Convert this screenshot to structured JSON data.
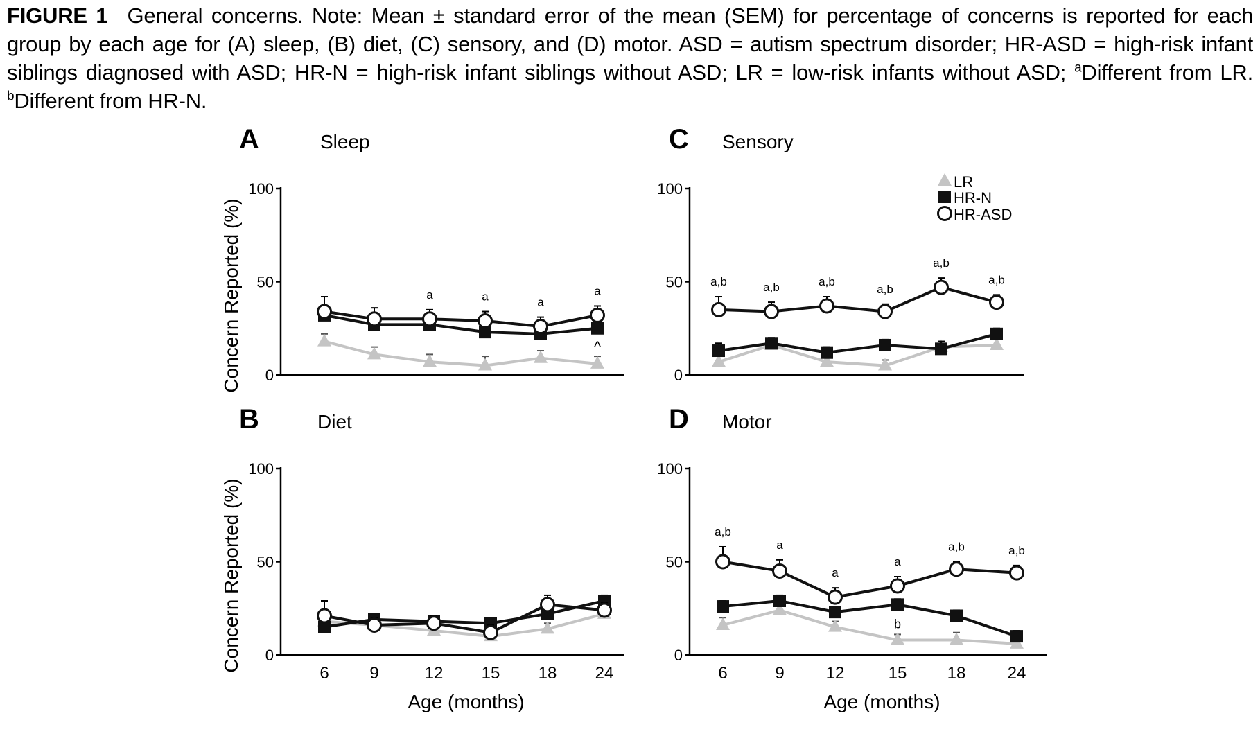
{
  "caption": {
    "label": "FIGURE 1",
    "part1": "General concerns. Note: Mean ± standard error of the mean (SEM) for percentage of concerns is reported for each group by each age for (A) sleep, (B) diet, (C) sensory, and (D) motor. ASD = autism spectrum disorder; HR-ASD = high-risk infant siblings diagnosed with ASD; HR-N = high-risk infant siblings without ASD; LR = low-risk infants without ASD; ",
    "sup_a": "a",
    "part2": "Different from LR. ",
    "sup_b": "b",
    "part3": "Different from HR-N."
  },
  "legend": [
    "LR",
    "HR-N",
    "HR-ASD"
  ],
  "colors": {
    "LR": "#c4c4c4",
    "HR-N": "#111111",
    "HR-ASD": "#111111"
  },
  "chart_data": [
    {
      "type": "line",
      "panel": "A",
      "title": "Sleep",
      "ylabel": "Concern Reported (%)",
      "xlabel": "",
      "categories": [
        "6",
        "9",
        "12",
        "15",
        "18",
        "24"
      ],
      "ylim": [
        0,
        100
      ],
      "yticks": [
        0,
        50,
        100
      ],
      "series": [
        {
          "name": "LR",
          "values": [
            18,
            11,
            7,
            5,
            9,
            6
          ],
          "err": [
            4,
            4,
            4,
            5,
            4,
            4
          ]
        },
        {
          "name": "HR-N",
          "values": [
            32,
            27,
            27,
            23,
            22,
            25
          ],
          "err": [
            4,
            3,
            3,
            3,
            3,
            3
          ]
        },
        {
          "name": "HR-ASD",
          "values": [
            34,
            30,
            30,
            29,
            26,
            32
          ],
          "err": [
            8,
            6,
            5,
            5,
            5,
            5
          ]
        }
      ],
      "annotations": [
        "",
        "",
        "a",
        "a",
        "a",
        "a"
      ],
      "marks": [
        "",
        "",
        "",
        "",
        "",
        "^"
      ]
    },
    {
      "type": "line",
      "panel": "B",
      "title": "Diet",
      "ylabel": "Concern Reported (%)",
      "xlabel": "Age (months)",
      "categories": [
        "6",
        "9",
        "12",
        "15",
        "18",
        "24"
      ],
      "ylim": [
        0,
        100
      ],
      "yticks": [
        0,
        50,
        100
      ],
      "series": [
        {
          "name": "LR",
          "values": [
            18,
            16,
            13,
            10,
            14,
            22
          ],
          "err": [
            4,
            4,
            4,
            4,
            3,
            3
          ]
        },
        {
          "name": "HR-N",
          "values": [
            15,
            19,
            18,
            17,
            22,
            29
          ],
          "err": [
            3,
            3,
            3,
            3,
            3,
            3
          ]
        },
        {
          "name": "HR-ASD",
          "values": [
            21,
            16,
            17,
            12,
            27,
            24
          ],
          "err": [
            8,
            4,
            4,
            4,
            5,
            4
          ]
        }
      ],
      "annotations": [
        "",
        "",
        "",
        "",
        "",
        ""
      ],
      "marks": [
        "",
        "",
        "",
        "",
        "",
        ""
      ]
    },
    {
      "type": "line",
      "panel": "C",
      "title": "Sensory",
      "ylabel": "",
      "xlabel": "",
      "categories": [
        "6",
        "9",
        "12",
        "15",
        "18",
        "24"
      ],
      "ylim": [
        0,
        100
      ],
      "yticks": [
        0,
        50,
        100
      ],
      "legend_position": "top-right",
      "series": [
        {
          "name": "LR",
          "values": [
            7,
            16,
            7,
            5,
            15,
            16
          ],
          "err": [
            5,
            3,
            3,
            3,
            3,
            3
          ]
        },
        {
          "name": "HR-N",
          "values": [
            13,
            17,
            12,
            16,
            14,
            22
          ],
          "err": [
            4,
            3,
            3,
            3,
            4,
            3
          ]
        },
        {
          "name": "HR-ASD",
          "values": [
            35,
            34,
            37,
            34,
            47,
            39
          ],
          "err": [
            7,
            5,
            5,
            4,
            5,
            4
          ]
        }
      ],
      "annotations": [
        "a,b",
        "a,b",
        "a,b",
        "a,b",
        "a,b",
        "a,b"
      ],
      "marks": [
        "",
        "",
        "",
        "",
        "",
        ""
      ]
    },
    {
      "type": "line",
      "panel": "D",
      "title": "Motor",
      "ylabel": "",
      "xlabel": "Age (months)",
      "categories": [
        "6",
        "9",
        "12",
        "15",
        "18",
        "24"
      ],
      "ylim": [
        0,
        100
      ],
      "yticks": [
        0,
        50,
        100
      ],
      "series": [
        {
          "name": "LR",
          "values": [
            16,
            24,
            15,
            8,
            8,
            6
          ],
          "err": [
            4,
            4,
            3,
            3,
            4,
            4
          ]
        },
        {
          "name": "HR-N",
          "values": [
            26,
            29,
            23,
            27,
            21,
            10
          ],
          "err": [
            3,
            3,
            3,
            3,
            3,
            3
          ]
        },
        {
          "name": "HR-ASD",
          "values": [
            50,
            45,
            31,
            37,
            46,
            44
          ],
          "err": [
            8,
            6,
            5,
            5,
            4,
            4
          ]
        }
      ],
      "annotations": [
        "a,b",
        "a",
        "a",
        "a",
        "a,b",
        "a,b"
      ],
      "marks": [
        "",
        "",
        "",
        "b",
        "",
        ""
      ]
    }
  ]
}
